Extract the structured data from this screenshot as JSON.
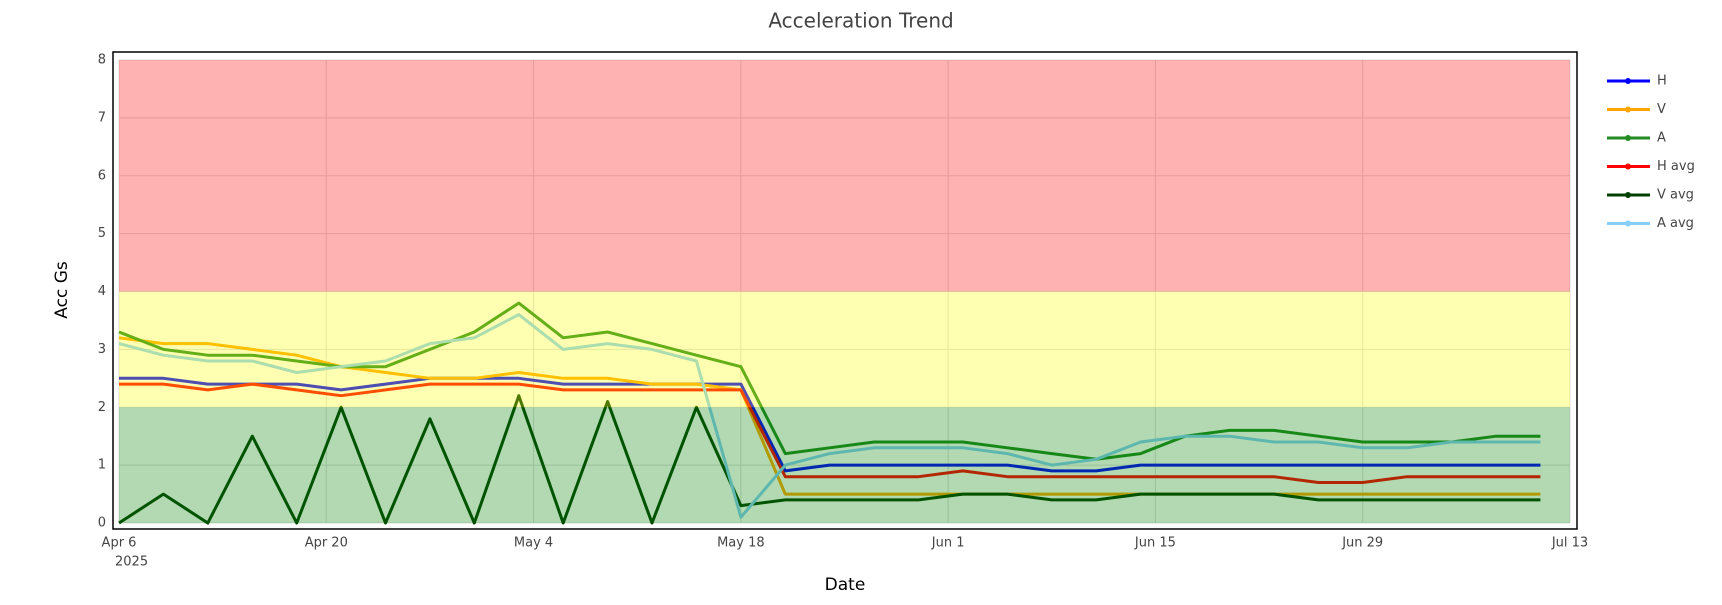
{
  "chart_data": {
    "type": "line",
    "title": "Acceleration Trend",
    "x_label": "Date",
    "y_label": "Acc Gs",
    "x": [
      "2025-04-06",
      "2025-04-09",
      "2025-04-12",
      "2025-04-15",
      "2025-04-18",
      "2025-04-21",
      "2025-04-24",
      "2025-04-27",
      "2025-04-30",
      "2025-05-03",
      "2025-05-06",
      "2025-05-09",
      "2025-05-12",
      "2025-05-15",
      "2025-05-18",
      "2025-05-21",
      "2025-05-24",
      "2025-05-27",
      "2025-05-30",
      "2025-06-02",
      "2025-06-05",
      "2025-06-08",
      "2025-06-11",
      "2025-06-14",
      "2025-06-17",
      "2025-06-20",
      "2025-06-23",
      "2025-06-26",
      "2025-06-29",
      "2025-07-02",
      "2025-07-05",
      "2025-07-08",
      "2025-07-11"
    ],
    "series": [
      {
        "name": "H",
        "color": "#0000ff",
        "values": [
          2.5,
          2.5,
          2.4,
          2.4,
          2.4,
          2.3,
          2.4,
          2.5,
          2.5,
          2.5,
          2.4,
          2.4,
          2.4,
          2.4,
          2.4,
          0.9,
          1.0,
          1.0,
          1.0,
          1.0,
          1.0,
          0.9,
          0.9,
          1.0,
          1.0,
          1.0,
          1.0,
          1.0,
          1.0,
          1.0,
          1.0,
          1.0,
          1.0
        ]
      },
      {
        "name": "V",
        "color": "#ffa500",
        "values": [
          3.2,
          3.1,
          3.1,
          3.0,
          2.9,
          2.7,
          2.6,
          2.5,
          2.5,
          2.6,
          2.5,
          2.5,
          2.4,
          2.4,
          2.3,
          0.5,
          0.5,
          0.5,
          0.5,
          0.5,
          0.5,
          0.5,
          0.5,
          0.5,
          0.5,
          0.5,
          0.5,
          0.5,
          0.5,
          0.5,
          0.5,
          0.5,
          0.5
        ]
      },
      {
        "name": "A",
        "color": "#228b22",
        "values": [
          3.3,
          3.0,
          2.9,
          2.9,
          2.8,
          2.7,
          2.7,
          3.0,
          3.3,
          3.8,
          3.2,
          3.3,
          3.1,
          2.9,
          2.7,
          1.2,
          1.3,
          1.4,
          1.4,
          1.4,
          1.3,
          1.2,
          1.1,
          1.2,
          1.5,
          1.6,
          1.6,
          1.5,
          1.4,
          1.4,
          1.4,
          1.5,
          1.5
        ]
      },
      {
        "name": "H avg",
        "color": "#ff0000",
        "values": [
          2.4,
          2.4,
          2.3,
          2.4,
          2.3,
          2.2,
          2.3,
          2.4,
          2.4,
          2.4,
          2.3,
          2.3,
          2.3,
          2.3,
          2.3,
          0.8,
          0.8,
          0.8,
          0.8,
          0.9,
          0.8,
          0.8,
          0.8,
          0.8,
          0.8,
          0.8,
          0.8,
          0.7,
          0.7,
          0.8,
          0.8,
          0.8,
          0.8
        ]
      },
      {
        "name": "V avg",
        "color": "#004000",
        "values": [
          0,
          0.5,
          0,
          1.5,
          0,
          2.0,
          0,
          1.8,
          0,
          2.2,
          0,
          2.1,
          0,
          2.0,
          0.3,
          0.4,
          0.4,
          0.4,
          0.4,
          0.5,
          0.5,
          0.4,
          0.4,
          0.5,
          0.5,
          0.5,
          0.5,
          0.4,
          0.4,
          0.4,
          0.4,
          0.4,
          0.4
        ]
      },
      {
        "name": "A avg",
        "color": "#87cefa",
        "values": [
          3.1,
          2.9,
          2.8,
          2.8,
          2.6,
          2.7,
          2.8,
          3.1,
          3.2,
          3.6,
          3.0,
          3.1,
          3.0,
          2.8,
          0.1,
          1.0,
          1.2,
          1.3,
          1.3,
          1.3,
          1.2,
          1.0,
          1.1,
          1.4,
          1.5,
          1.5,
          1.4,
          1.4,
          1.3,
          1.3,
          1.4,
          1.4,
          1.4
        ]
      }
    ],
    "bands": [
      {
        "from": 0,
        "to": 2,
        "color": "#008000"
      },
      {
        "from": 2,
        "to": 4,
        "color": "#ffff00"
      },
      {
        "from": 4,
        "to": 8,
        "color": "#ff0000"
      }
    ],
    "xlim": [
      "2025-04-06",
      "2025-07-13"
    ],
    "xticks": [
      {
        "value": "2025-04-06",
        "label": "Apr 6"
      },
      {
        "value": "2025-04-20",
        "label": "Apr 20"
      },
      {
        "value": "2025-05-04",
        "label": "May 4"
      },
      {
        "value": "2025-05-18",
        "label": "May 18"
      },
      {
        "value": "2025-06-01",
        "label": "Jun 1"
      },
      {
        "value": "2025-06-15",
        "label": "Jun 15"
      },
      {
        "value": "2025-06-29",
        "label": "Jun 29"
      },
      {
        "value": "2025-07-13",
        "label": "Jul 13"
      }
    ],
    "x_year_label": "2025",
    "ylim": [
      0,
      8
    ],
    "yticks": [
      0,
      1,
      2,
      3,
      4,
      5,
      6,
      7,
      8
    ],
    "grid": true,
    "legend": "right"
  }
}
